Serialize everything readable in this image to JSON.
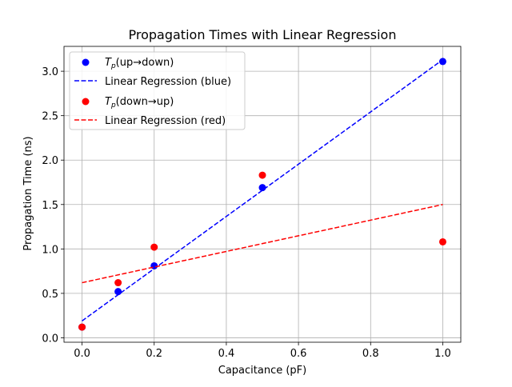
{
  "chart_data": {
    "type": "scatter",
    "title": "Propagation Times with Linear Regression",
    "xlabel": "Capacitance (pF)",
    "ylabel": "Propagation Time (ns)",
    "xlim": [
      -0.05,
      1.05
    ],
    "ylim": [
      -0.05,
      3.28
    ],
    "x_ticks": [
      "0.0",
      "0.2",
      "0.4",
      "0.6",
      "0.8",
      "1.0"
    ],
    "y_ticks": [
      "0.0",
      "0.5",
      "1.0",
      "1.5",
      "2.0",
      "2.5",
      "3.0"
    ],
    "grid": true,
    "legend_position": "top-left",
    "series": [
      {
        "name_base": "T",
        "name_sub": "p",
        "name_rest": "(up→down)",
        "kind": "scatter",
        "color": "#0000ff",
        "points": [
          [
            0.0,
            0.12
          ],
          [
            0.1,
            0.52
          ],
          [
            0.2,
            0.81
          ],
          [
            0.5,
            1.69
          ],
          [
            1.0,
            3.11
          ]
        ]
      },
      {
        "name": "Linear Regression (blue)",
        "kind": "line",
        "color": "#0000ff",
        "points": [
          [
            0.0,
            0.19
          ],
          [
            1.0,
            3.13
          ]
        ]
      },
      {
        "name_base": "T",
        "name_sub": "p",
        "name_rest": "(down→up)",
        "kind": "scatter",
        "color": "#ff0000",
        "points": [
          [
            0.0,
            0.12
          ],
          [
            0.1,
            0.62
          ],
          [
            0.2,
            1.02
          ],
          [
            0.5,
            1.83
          ],
          [
            1.0,
            1.08
          ]
        ]
      },
      {
        "name": "Linear Regression (red)",
        "kind": "line",
        "color": "#ff0000",
        "points": [
          [
            0.0,
            0.62
          ],
          [
            1.0,
            1.5
          ]
        ]
      }
    ]
  }
}
